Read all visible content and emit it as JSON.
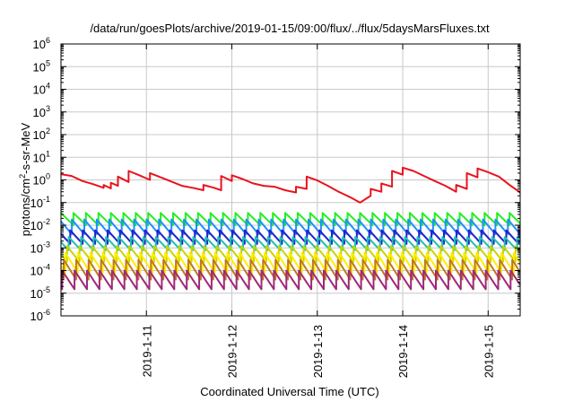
{
  "chart_data": {
    "type": "line",
    "title": "/data/run/goesPlots/archive/2019-01-15/09:00/flux/../flux/5daysMarsFluxes.txt",
    "xlabel": "Coordinated Universal Time (UTC)",
    "ylabel": "protons/cm²-s-sr-MeV",
    "ylabel_parts": {
      "base": "protons/cm",
      "sup": "2",
      "rest": "-s-sr-MeV"
    },
    "xlim": [
      "2019-01-10 00:00",
      "2019-01-15 09:00"
    ],
    "ylim": [
      1e-06,
      1000000.0
    ],
    "yscale": "log",
    "y_tick_labels": [
      {
        "value": 1e-06,
        "base": "10",
        "exp": "-6"
      },
      {
        "value": 1e-05,
        "base": "10",
        "exp": "-5"
      },
      {
        "value": 0.0001,
        "base": "10",
        "exp": "-4"
      },
      {
        "value": 0.001,
        "base": "10",
        "exp": "-3"
      },
      {
        "value": 0.01,
        "base": "10",
        "exp": "-2"
      },
      {
        "value": 0.1,
        "base": "10",
        "exp": "-1"
      },
      {
        "value": 1.0,
        "base": "10",
        "exp": "0"
      },
      {
        "value": 10.0,
        "base": "10",
        "exp": "1"
      },
      {
        "value": 100.0,
        "base": "10",
        "exp": "2"
      },
      {
        "value": 1000.0,
        "base": "10",
        "exp": "3"
      },
      {
        "value": 10000.0,
        "base": "10",
        "exp": "4"
      },
      {
        "value": 100000.0,
        "base": "10",
        "exp": "5"
      },
      {
        "value": 1000000.0,
        "base": "10",
        "exp": "6"
      }
    ],
    "x_tick_labels": [
      {
        "date": "2019-01-11 00:00",
        "label": "2019-1-11"
      },
      {
        "date": "2019-01-12 00:00",
        "label": "2019-1-12"
      },
      {
        "date": "2019-01-13 00:00",
        "label": "2019-1-13"
      },
      {
        "date": "2019-01-14 00:00",
        "label": "2019-1-14"
      },
      {
        "date": "2019-01-15 00:00",
        "label": "2019-1-15"
      }
    ],
    "grid": true,
    "legend": "none",
    "series": [
      {
        "color": "#e8141e",
        "x": [
          "2019-01-10 00:00",
          "2019-01-10 03:00",
          "2019-01-10 06:00",
          "2019-01-10 09:00",
          "2019-01-10 12:00",
          "2019-01-10 12:00",
          "2019-01-10 14:00",
          "2019-01-10 14:00",
          "2019-01-10 16:00",
          "2019-01-10 16:00",
          "2019-01-10 19:00",
          "2019-01-10 19:00",
          "2019-01-10 22:00",
          "2019-01-11 01:00",
          "2019-01-11 01:00",
          "2019-01-11 04:00",
          "2019-01-11 07:00",
          "2019-01-11 10:00",
          "2019-01-11 13:00",
          "2019-01-11 16:00",
          "2019-01-11 16:00",
          "2019-01-11 19:00",
          "2019-01-11 21:00",
          "2019-01-11 21:00",
          "2019-01-12 00:00",
          "2019-01-12 00:00",
          "2019-01-12 03:00",
          "2019-01-12 06:00",
          "2019-01-12 09:00",
          "2019-01-12 12:00",
          "2019-01-12 15:00",
          "2019-01-12 18:00",
          "2019-01-12 18:00",
          "2019-01-12 21:00",
          "2019-01-12 21:00",
          "2019-01-13 00:00",
          "2019-01-13 03:00",
          "2019-01-13 06:00",
          "2019-01-13 09:00",
          "2019-01-13 12:00",
          "2019-01-13 15:00",
          "2019-01-13 15:00",
          "2019-01-13 18:00",
          "2019-01-13 18:00",
          "2019-01-13 21:00",
          "2019-01-13 21:00",
          "2019-01-14 00:00",
          "2019-01-14 00:00",
          "2019-01-14 03:00",
          "2019-01-14 06:00",
          "2019-01-14 09:00",
          "2019-01-14 12:00",
          "2019-01-14 15:00",
          "2019-01-14 15:00",
          "2019-01-14 18:00",
          "2019-01-14 18:00",
          "2019-01-14 21:00",
          "2019-01-14 21:00",
          "2019-01-15 00:00",
          "2019-01-15 03:00",
          "2019-01-15 06:00",
          "2019-01-15 09:00"
        ],
        "y": [
          1.8,
          1.5,
          0.9,
          0.65,
          0.45,
          0.6,
          0.42,
          0.75,
          0.55,
          1.4,
          0.8,
          2.5,
          1.6,
          1.0,
          2.0,
          1.3,
          0.85,
          0.55,
          0.45,
          0.35,
          0.6,
          0.45,
          0.35,
          1.5,
          0.9,
          1.6,
          1.1,
          0.7,
          0.55,
          0.5,
          0.35,
          0.28,
          0.5,
          0.4,
          1.4,
          0.95,
          0.55,
          0.3,
          0.18,
          0.1,
          0.2,
          0.4,
          0.3,
          0.7,
          0.5,
          2.5,
          1.7,
          3.5,
          2.5,
          1.5,
          0.9,
          0.55,
          0.3,
          0.6,
          0.4,
          2.0,
          1.3,
          3.2,
          2.2,
          1.4,
          0.6,
          0.28
        ]
      }
    ],
    "sawtooth_series": [
      {
        "color": "#22ee22",
        "low": 0.01,
        "high": 0.035
      },
      {
        "color": "#1e90ff",
        "low": 0.004,
        "high": 0.018
      },
      {
        "color": "#2222cc",
        "low": 0.0015,
        "high": 0.006
      },
      {
        "color": "#20c0b0",
        "low": 0.0008,
        "high": 0.003
      },
      {
        "color": "#c8d400",
        "low": 0.00025,
        "high": 0.0012
      },
      {
        "color": "#ffee00",
        "low": 8e-05,
        "high": 0.0006
      },
      {
        "color": "#c07820",
        "low": 4e-05,
        "high": 0.0003
      },
      {
        "color": "#a02878",
        "low": 1.5e-05,
        "high": 0.0001
      }
    ],
    "sawtooth_period_hours": 3.5
  }
}
